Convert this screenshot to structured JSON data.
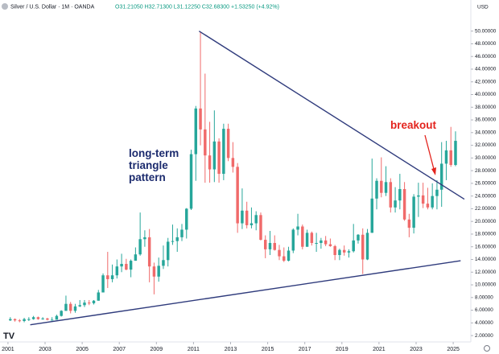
{
  "chart_data": {
    "type": "candlestick",
    "title": "Silver / U.S. Dollar · 1M · OANDA",
    "header_stats": "O31.21050 H32.71300 L31.12250 C32.68300 +1.53250 (+4.92%)",
    "y_axis_label": "USD",
    "up_color": "#26a69a",
    "down_color": "#f06a6a",
    "x": [
      2001.125,
      2001.375,
      2001.625,
      2001.875,
      2002.125,
      2002.375,
      2002.625,
      2002.875,
      2003.125,
      2003.375,
      2003.625,
      2003.875,
      2004.125,
      2004.375,
      2004.625,
      2004.875,
      2005.125,
      2005.375,
      2005.625,
      2005.875,
      2006.125,
      2006.375,
      2006.625,
      2006.875,
      2007.125,
      2007.375,
      2007.625,
      2007.875,
      2008.125,
      2008.375,
      2008.625,
      2008.875,
      2009.125,
      2009.375,
      2009.625,
      2009.875,
      2010.125,
      2010.375,
      2010.625,
      2010.875,
      2011.125,
      2011.375,
      2011.625,
      2011.875,
      2012.125,
      2012.375,
      2012.625,
      2012.875,
      2013.125,
      2013.375,
      2013.625,
      2013.875,
      2014.125,
      2014.375,
      2014.625,
      2014.875,
      2015.125,
      2015.375,
      2015.625,
      2015.875,
      2016.125,
      2016.375,
      2016.625,
      2016.875,
      2017.125,
      2017.375,
      2017.625,
      2017.875,
      2018.125,
      2018.375,
      2018.625,
      2018.875,
      2019.125,
      2019.375,
      2019.625,
      2019.875,
      2020.125,
      2020.375,
      2020.625,
      2020.875,
      2021.125,
      2021.375,
      2021.625,
      2021.875,
      2022.125,
      2022.375,
      2022.625,
      2022.875,
      2023.125,
      2023.375,
      2023.625,
      2023.875,
      2024.125,
      2024.375,
      2024.625,
      2024.875,
      2025.125
    ],
    "open": [
      4.4,
      4.6,
      4.4,
      4.3,
      4.6,
      4.6,
      4.9,
      4.6,
      4.7,
      4.5,
      4.5,
      5.1,
      5.9,
      7.0,
      5.9,
      6.6,
      6.8,
      7.2,
      7.1,
      7.5,
      8.8,
      11.5,
      10.9,
      11.5,
      12.9,
      13.3,
      12.4,
      13.8,
      14.8,
      17.2,
      17.5,
      12.9,
      11.3,
      13.0,
      13.9,
      16.8,
      16.9,
      17.5,
      18.7,
      22.0,
      30.6,
      37.8,
      34.5,
      30.4,
      28.2,
      32.6,
      27.5,
      34.6,
      30.0,
      28.6,
      19.7,
      21.7,
      19.4,
      19.7,
      21.0,
      17.1,
      15.6,
      16.6,
      15.5,
      14.5,
      13.8,
      15.4,
      18.7,
      19.2,
      16.0,
      18.2,
      16.6,
      16.6,
      17.0,
      16.4,
      16.1,
      14.7,
      15.5,
      15.1,
      15.3,
      17.0,
      17.9,
      14.0,
      18.2,
      23.6,
      26.4,
      24.5,
      26.2,
      22.2,
      23.3,
      25.1,
      20.3,
      19.0,
      23.9,
      24.1,
      22.8,
      22.2,
      24.0,
      25.0,
      29.1,
      31.2,
      28.9
    ],
    "high": [
      4.9,
      4.7,
      4.6,
      4.8,
      4.9,
      5.1,
      5.0,
      4.9,
      4.8,
      4.9,
      5.3,
      6.0,
      8.3,
      7.3,
      7.0,
      7.6,
      7.6,
      7.6,
      7.6,
      9.2,
      11.8,
      15.2,
      13.2,
      14.0,
      14.9,
      14.1,
      14.0,
      15.9,
      21.4,
      18.6,
      18.8,
      13.5,
      14.3,
      16.2,
      17.4,
      19.5,
      18.9,
      19.6,
      22.1,
      31.3,
      38.2,
      49.8,
      43.3,
      35.7,
      37.5,
      33.1,
      35.4,
      35.4,
      32.5,
      29.2,
      25.2,
      23.1,
      22.2,
      21.6,
      21.4,
      17.8,
      18.5,
      17.8,
      16.3,
      15.9,
      16.0,
      18.9,
      21.2,
      19.5,
      18.7,
      18.4,
      18.2,
      17.4,
      17.7,
      17.3,
      16.3,
      15.7,
      16.2,
      15.6,
      19.6,
      18.0,
      18.9,
      18.8,
      29.9,
      26.8,
      30.1,
      28.7,
      26.8,
      25.4,
      27.5,
      26.2,
      21.2,
      24.3,
      26.1,
      26.1,
      25.3,
      26.0,
      26.5,
      32.5,
      32.7,
      34.9,
      34.2
    ],
    "low": [
      4.3,
      4.2,
      4.1,
      4.1,
      4.3,
      4.5,
      4.5,
      4.5,
      4.4,
      4.4,
      4.5,
      5.0,
      5.9,
      5.5,
      5.6,
      6.5,
      6.5,
      6.8,
      6.9,
      7.5,
      8.8,
      9.5,
      10.4,
      11.0,
      12.0,
      12.3,
      11.2,
      13.8,
      14.6,
      16.0,
      10.4,
      8.5,
      10.5,
      12.5,
      12.9,
      16.3,
      15.2,
      16.9,
      17.3,
      21.8,
      26.4,
      32.0,
      26.1,
      26.1,
      26.2,
      26.1,
      26.5,
      29.5,
      27.7,
      18.2,
      18.8,
      18.9,
      18.9,
      18.6,
      17.0,
      14.2,
      14.7,
      15.4,
      13.9,
      13.6,
      13.7,
      15.0,
      17.8,
      15.6,
      16.0,
      16.2,
      15.2,
      15.7,
      16.1,
      16.0,
      13.9,
      13.9,
      14.6,
      14.3,
      15.1,
      16.5,
      11.7,
      13.9,
      18.2,
      21.9,
      23.8,
      24.0,
      21.4,
      21.4,
      21.9,
      20.1,
      17.5,
      18.1,
      20.7,
      22.1,
      21.9,
      21.9,
      21.9,
      22.3,
      26.5,
      28.6,
      28.7
    ],
    "close": [
      4.6,
      4.4,
      4.3,
      4.6,
      4.6,
      4.9,
      4.6,
      4.7,
      4.5,
      4.5,
      5.1,
      5.9,
      7.0,
      5.9,
      6.6,
      6.8,
      7.2,
      7.1,
      7.5,
      8.8,
      11.5,
      10.9,
      11.5,
      12.9,
      13.3,
      12.4,
      13.8,
      14.8,
      17.2,
      17.5,
      12.9,
      11.3,
      13.0,
      13.9,
      16.8,
      16.9,
      17.5,
      18.7,
      22.0,
      30.6,
      37.8,
      34.5,
      30.4,
      28.2,
      32.6,
      27.5,
      34.6,
      30.0,
      28.6,
      19.7,
      21.7,
      19.4,
      19.7,
      21.0,
      17.1,
      15.6,
      16.6,
      15.5,
      14.5,
      13.8,
      15.4,
      18.7,
      19.2,
      16.0,
      18.2,
      16.6,
      16.6,
      17.0,
      16.4,
      16.1,
      14.7,
      15.5,
      15.1,
      15.3,
      17.0,
      17.9,
      14.0,
      18.2,
      23.6,
      26.4,
      24.5,
      26.2,
      22.2,
      23.3,
      25.1,
      20.3,
      19.0,
      23.9,
      24.1,
      22.8,
      22.2,
      24.0,
      25.0,
      29.1,
      31.2,
      28.9,
      32.7
    ],
    "xlim": [
      2000.57,
      2025.95
    ],
    "xticks": [
      2001,
      2003,
      2005,
      2007,
      2009,
      2011,
      2013,
      2015,
      2017,
      2019,
      2021,
      2023,
      2025
    ],
    "ylim": [
      1.0,
      53.0
    ],
    "yticks": [
      {
        "value": 2,
        "label": "2.00000"
      },
      {
        "value": 4,
        "label": "4.00000"
      },
      {
        "value": 6,
        "label": "6.00000"
      },
      {
        "value": 8,
        "label": "8.00000"
      },
      {
        "value": 10,
        "label": "10.00000"
      },
      {
        "value": 12,
        "label": "12.00000"
      },
      {
        "value": 14,
        "label": "14.00000"
      },
      {
        "value": 16,
        "label": "16.00000"
      },
      {
        "value": 18,
        "label": "18.00000"
      },
      {
        "value": 20,
        "label": "20.00000"
      },
      {
        "value": 22,
        "label": "22.00000"
      },
      {
        "value": 24,
        "label": "24.00000"
      },
      {
        "value": 26,
        "label": "26.00000"
      },
      {
        "value": 28,
        "label": "28.00000"
      },
      {
        "value": 30,
        "label": "30.00000"
      },
      {
        "value": 32,
        "label": "32.00000"
      },
      {
        "value": 34,
        "label": "34.00000"
      },
      {
        "value": 36,
        "label": "36.00000"
      },
      {
        "value": 38,
        "label": "38.00000"
      },
      {
        "value": 40,
        "label": "40.00000"
      },
      {
        "value": 42,
        "label": "42.00000"
      },
      {
        "value": 44,
        "label": "44.00000"
      },
      {
        "value": 46,
        "label": "46.00000"
      },
      {
        "value": 48,
        "label": "48.00000"
      },
      {
        "value": 50,
        "label": "50.00000"
      }
    ],
    "grid": false,
    "trendlines": [
      {
        "color": "#2f3b7c",
        "x": [
          2011.3,
          2025.6
        ],
        "y": [
          50.0,
          23.5
        ]
      },
      {
        "color": "#2f3b7c",
        "x": [
          2002.2,
          2025.4
        ],
        "y": [
          3.7,
          13.8
        ]
      }
    ],
    "annotations": [
      {
        "text": "long-term triangle pattern",
        "color": "#1c2b6e"
      },
      {
        "text": "breakout",
        "color": "#e3231d"
      }
    ]
  }
}
